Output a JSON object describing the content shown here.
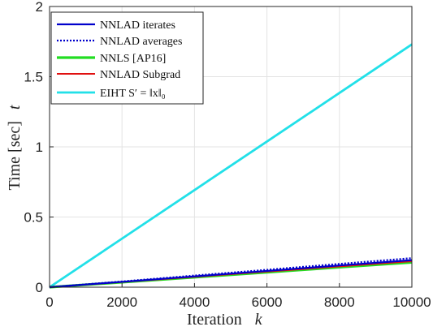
{
  "chart_data": {
    "type": "line",
    "xlabel": "Iteration",
    "xlabel_var": "k",
    "ylabel": "Time [sec]",
    "ylabel_var": "t",
    "xlim": [
      0,
      10000
    ],
    "ylim": [
      0,
      2
    ],
    "xticks": [
      "0",
      "2000",
      "4000",
      "6000",
      "8000",
      "10000"
    ],
    "yticks": [
      "0",
      "0.5",
      "1",
      "1.5",
      "2"
    ],
    "grid": true,
    "legend_position": "top-left",
    "series": [
      {
        "name": "NNLAD iterates",
        "color": "#0000cc",
        "dash": "solid",
        "width": 2.2,
        "x": [
          0,
          2000,
          4000,
          6000,
          8000,
          10000
        ],
        "y": [
          0,
          0.038,
          0.077,
          0.116,
          0.155,
          0.193
        ]
      },
      {
        "name": "NNLAD averages",
        "color": "#0000cc",
        "dash": "dotted",
        "width": 2.2,
        "x": [
          0,
          2000,
          4000,
          6000,
          8000,
          10000
        ],
        "y": [
          0,
          0.041,
          0.083,
          0.124,
          0.166,
          0.207
        ]
      },
      {
        "name": "NNLS [AP16]",
        "color": "#22dd22",
        "dash": "solid",
        "width": 3.2,
        "x": [
          0,
          2000,
          4000,
          6000,
          8000,
          10000
        ],
        "y": [
          0,
          0.035,
          0.071,
          0.106,
          0.142,
          0.177
        ]
      },
      {
        "name": "NNLAD Subgrad",
        "color": "#e01010",
        "dash": "solid",
        "width": 2,
        "x": [
          0,
          2000,
          4000,
          6000,
          8000,
          10000
        ],
        "y": [
          0,
          0.037,
          0.074,
          0.111,
          0.148,
          0.185
        ]
      },
      {
        "name": "EIHT S′ = ‖x‖₀",
        "color": "#22e0e8",
        "dash": "solid",
        "width": 2.8,
        "x": [
          0,
          2000,
          4000,
          6000,
          8000,
          10000
        ],
        "y": [
          0,
          0.346,
          0.692,
          1.038,
          1.384,
          1.73
        ]
      }
    ]
  }
}
